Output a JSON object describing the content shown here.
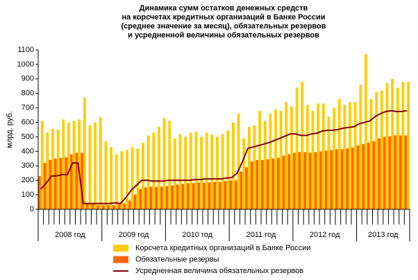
{
  "chart_data": {
    "type": "bar",
    "title": [
      "Динамика сумм остатков денежных средств",
      "на корсчетах кредитных организаций в Банке России",
      "(среднее значение за месяц), обязательных резервов",
      "и усредненной величины обязательных резервов"
    ],
    "ylabel": "млрд. руб.",
    "ylim": [
      0,
      1100
    ],
    "yticks": [
      0,
      100,
      200,
      300,
      400,
      500,
      600,
      700,
      800,
      900,
      1000,
      1100
    ],
    "year_labels": [
      "2008 год",
      "2009 год",
      "2010 год",
      "2011 год",
      "2012 год",
      "2013 год"
    ],
    "categories": [
      null,
      null,
      null,
      null,
      null,
      null,
      null,
      null,
      null,
      null,
      null,
      null,
      null,
      null,
      null,
      null,
      null,
      null,
      null,
      null,
      null,
      null,
      null,
      null,
      null,
      null,
      null,
      null,
      null,
      null,
      null,
      null,
      null,
      null,
      null,
      null,
      null,
      null,
      null,
      null,
      null,
      null,
      null,
      null,
      null,
      null,
      null,
      null,
      null,
      null,
      null,
      null,
      null,
      null,
      null,
      null,
      null,
      null,
      null,
      null,
      null,
      null,
      null,
      null,
      null,
      null,
      null,
      null,
      null,
      null
    ],
    "series": [
      {
        "name": "Обязательные резервы",
        "color": "#ff6600",
        "kind": "bar",
        "values": [
          230,
          320,
          340,
          350,
          355,
          360,
          380,
          390,
          390,
          40,
          35,
          30,
          30,
          30,
          30,
          35,
          40,
          60,
          100,
          140,
          150,
          155,
          155,
          155,
          160,
          165,
          170,
          175,
          180,
          180,
          185,
          185,
          185,
          190,
          190,
          195,
          200,
          200,
          260,
          290,
          330,
          340,
          340,
          345,
          350,
          355,
          370,
          380,
          390,
          395,
          395,
          390,
          395,
          400,
          405,
          410,
          415,
          415,
          420,
          425,
          440,
          450,
          460,
          470,
          490,
          500,
          505,
          510,
          510,
          510
        ]
      },
      {
        "name": "Корсчета кредитных организаций в Банке России",
        "color": "#ffcc00",
        "kind": "bar",
        "values": [
          610,
          530,
          555,
          550,
          620,
          600,
          610,
          620,
          770,
          580,
          600,
          635,
          470,
          430,
          380,
          400,
          410,
          430,
          420,
          460,
          510,
          530,
          570,
          630,
          610,
          490,
          520,
          500,
          530,
          535,
          500,
          530,
          515,
          500,
          520,
          545,
          600,
          660,
          490,
          570,
          580,
          680,
          610,
          660,
          690,
          680,
          740,
          710,
          840,
          880,
          720,
          680,
          730,
          730,
          640,
          700,
          760,
          720,
          740,
          740,
          860,
          1070,
          760,
          810,
          820,
          870,
          900,
          840,
          880,
          880
        ]
      },
      {
        "name": "Усредненная величина обязательных резервов",
        "color": "#800000",
        "kind": "line",
        "values": [
          140,
          180,
          230,
          230,
          240,
          240,
          320,
          320,
          40,
          40,
          40,
          40,
          40,
          40,
          45,
          40,
          80,
          130,
          165,
          200,
          200,
          195,
          195,
          195,
          200,
          200,
          200,
          200,
          200,
          205,
          205,
          210,
          210,
          210,
          210,
          215,
          220,
          250,
          330,
          420,
          430,
          440,
          450,
          460,
          475,
          490,
          505,
          520,
          520,
          510,
          510,
          520,
          525,
          540,
          545,
          545,
          550,
          560,
          565,
          570,
          590,
          600,
          610,
          640,
          660,
          675,
          680,
          675,
          675,
          680
        ]
      }
    ]
  }
}
